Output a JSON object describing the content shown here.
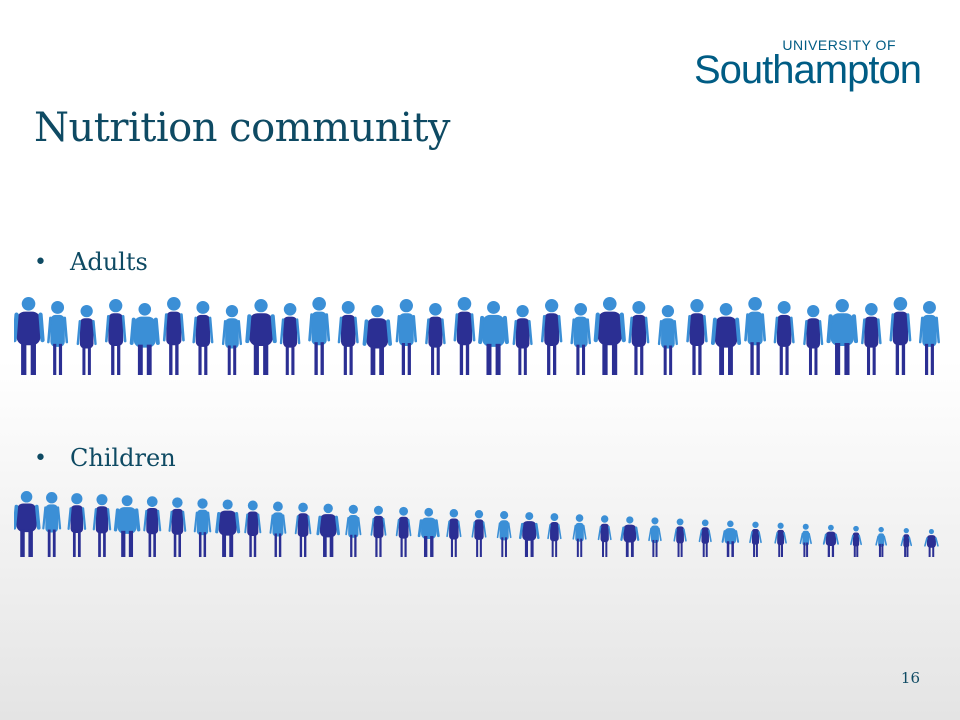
{
  "logo": {
    "line1": "UNIVERSITY OF",
    "line2": "Southampton"
  },
  "title": "Nutrition community",
  "bullets": {
    "adults": "Adults",
    "children": "Children"
  },
  "bullet_symbol": "•",
  "page_number": "16",
  "colors": {
    "title": "#0e4a63",
    "figure_dark": "#2b2f93",
    "figure_light": "#3b8fd6",
    "logo": "#005c84"
  },
  "adult_figure_count": 32,
  "child_figure_count": 37
}
